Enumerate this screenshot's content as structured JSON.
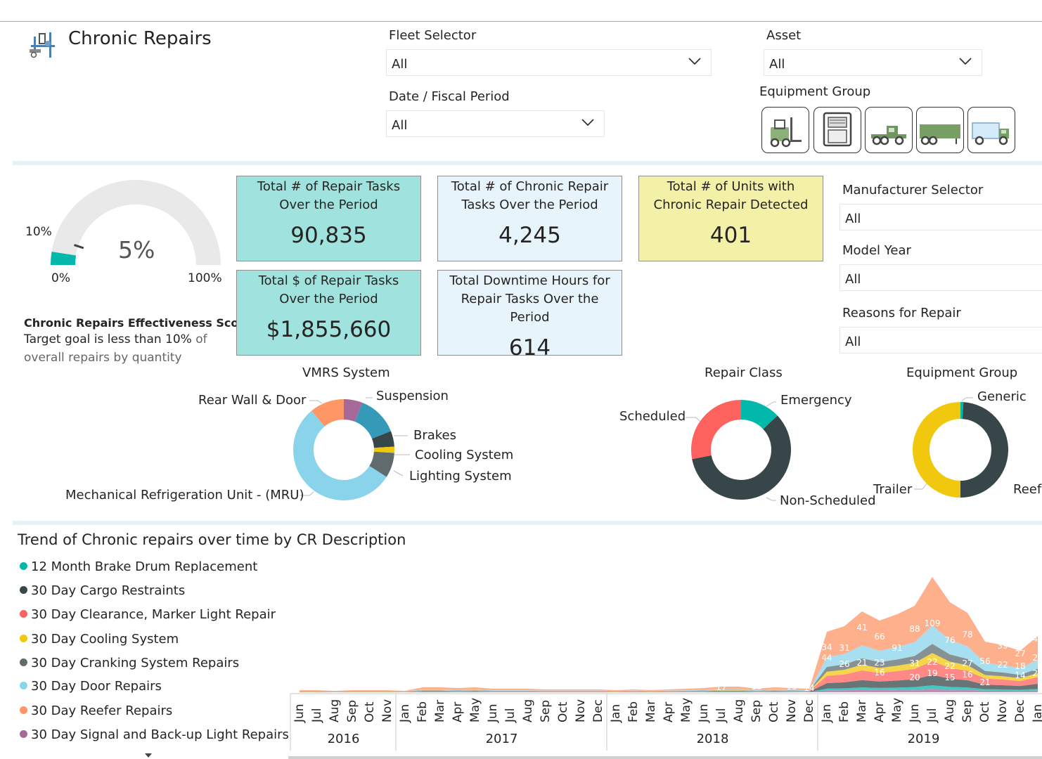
{
  "header": {
    "title": "Chronic Repairs"
  },
  "filters": {
    "fleet": {
      "label": "Fleet Selector",
      "value": "All"
    },
    "asset": {
      "label": "Asset",
      "value": "All"
    },
    "date": {
      "label": "Date / Fiscal Period",
      "value": "All"
    },
    "equipment_group": {
      "label": "Equipment Group",
      "buttons": [
        "forklift-icon",
        "reefer-unit-icon",
        "tractor-icon",
        "trailer-icon",
        "box-truck-icon"
      ]
    },
    "manufacturer": {
      "label": "Manufacturer Selector",
      "value": "All"
    },
    "model_year": {
      "label": "Model Year",
      "value": "All"
    },
    "reasons": {
      "label": "Reasons for Repair",
      "value": "All"
    }
  },
  "gauge": {
    "value_label": "5%",
    "value": 5,
    "target": 10,
    "min_label": "0%",
    "max_label": "100%",
    "target_label": "10%",
    "title": "Chronic Repairs Effectiveness Score",
    "desc_a": "Target goal is less than 10%",
    "desc_b": " of",
    "desc_c": "overall repairs by quantity"
  },
  "kpis": {
    "repair_tasks": {
      "title": "Total # of Repair Tasks Over the Period",
      "value": "90,835"
    },
    "chronic_tasks": {
      "title": "Total # of Chronic Repair Tasks Over the Period",
      "value": "4,245"
    },
    "units": {
      "title": "Total # of Units with Chronic Repair Detected",
      "value": "401"
    },
    "dollars": {
      "title": "Total $ of Repair Tasks Over the Period",
      "value": "$1,855,660"
    },
    "downtime": {
      "title": "Total Downtime Hours for Repair Tasks Over the Period",
      "value": "614"
    }
  },
  "colors": {
    "teal": "#01b8aa",
    "dark": "#374649",
    "red": "#fd625e",
    "yellow": "#f2c80f",
    "grey": "#5f6b6d",
    "lightblue": "#8ad4eb",
    "orange": "#fe9666",
    "purple": "#a66999",
    "kpi_teal": "#a0e3de",
    "kpi_light": "#e7f4fb",
    "kpi_yellow": "#f3f1a8"
  },
  "chart_data": [
    {
      "type": "pie",
      "title": "VMRS System",
      "donut": true,
      "slices": [
        {
          "label": "Suspension",
          "value": 6,
          "color": "#a66999"
        },
        {
          "label": "",
          "value": 13,
          "color": "#3599b8"
        },
        {
          "label": "Brakes",
          "value": 5,
          "color": "#374649"
        },
        {
          "label": "Cooling System",
          "value": 2,
          "color": "#f2c80f"
        },
        {
          "label": "Lighting System",
          "value": 8,
          "color": "#5f6b6d"
        },
        {
          "label": "Mechanical Refrigeration Unit - (MRU)",
          "value": 55,
          "color": "#8ad4eb"
        },
        {
          "label": "Rear Wall & Door",
          "value": 11,
          "color": "#fe9666"
        }
      ]
    },
    {
      "type": "pie",
      "title": "Repair Class",
      "donut": true,
      "slices": [
        {
          "label": "Emergency",
          "value": 13,
          "color": "#01b8aa"
        },
        {
          "label": "Non-Scheduled",
          "value": 59,
          "color": "#374649"
        },
        {
          "label": "Scheduled",
          "value": 28,
          "color": "#fd625e"
        }
      ]
    },
    {
      "type": "pie",
      "title": "Equipment Group",
      "donut": true,
      "slices": [
        {
          "label": "Generic",
          "value": 1,
          "color": "#01b8aa"
        },
        {
          "label": "Reefe",
          "value": 49,
          "color": "#374649"
        },
        {
          "label": "Trailer",
          "value": 50,
          "color": "#f2c80f"
        }
      ]
    },
    {
      "type": "area",
      "title": "Trend of Chronic repairs over time by CR Description",
      "stacked": true,
      "legend": [
        "12 Month Brake Drum Replacement",
        "30 Day Cargo Restraints",
        "30 Day Clearance, Marker Light Repair",
        "30 Day Cooling System",
        "30 Day Cranking System Repairs",
        "30 Day Door Repairs",
        "30 Day Reefer Repairs",
        "30 Day Signal and Back-up Light Repairs"
      ],
      "legend_colors": [
        "#01b8aa",
        "#374649",
        "#fd625e",
        "#f2c80f",
        "#5f6b6d",
        "#8ad4eb",
        "#fe9666",
        "#a66999"
      ],
      "months": [
        "Jun",
        "Jul",
        "Aug",
        "Sep",
        "Oct",
        "Nov",
        "Jan",
        "Feb",
        "Mar",
        "Apr",
        "May",
        "Jun",
        "Jul",
        "Aug",
        "Sep",
        "Oct",
        "Nov",
        "Dec",
        "Jan",
        "Feb",
        "Mar",
        "Apr",
        "May",
        "Jun",
        "Jul",
        "Aug",
        "Sep",
        "Oct",
        "Nov",
        "Dec",
        "Jan",
        "Feb",
        "Mar",
        "Apr",
        "May",
        "Jun",
        "Jul",
        "Aug",
        "Sep",
        "Oct",
        "Nov",
        "Dec",
        "Jan"
      ],
      "years": [
        {
          "label": "2016",
          "span": [
            0,
            6
          ]
        },
        {
          "label": "2017",
          "span": [
            6,
            18
          ]
        },
        {
          "label": "2018",
          "span": [
            18,
            30
          ]
        },
        {
          "label": "2019",
          "span": [
            30,
            42
          ]
        }
      ],
      "totals": [
        3,
        3,
        2,
        3,
        3,
        3,
        2,
        7,
        7,
        6,
        7,
        5,
        5,
        5,
        4,
        4,
        4,
        4,
        3,
        4,
        3,
        4,
        5,
        6,
        8,
        8,
        5,
        7,
        6,
        5,
        86,
        94,
        115,
        102,
        111,
        123,
        164,
        128,
        113,
        72,
        67,
        59,
        80
      ],
      "labels": [
        {
          "i": 11,
          "v": "15",
          "y": 12
        },
        {
          "i": 24,
          "v": "17",
          "y": 3
        },
        {
          "i": 26,
          "v": "18",
          "y": 4
        },
        {
          "i": 28,
          "v": "15",
          "y": 4
        },
        {
          "i": 29,
          "v": "14",
          "y": 2
        },
        {
          "i": 30,
          "v": "44",
          "y": 45
        },
        {
          "i": 30,
          "v": "34",
          "y": 60
        },
        {
          "i": 31,
          "v": "26",
          "y": 36
        },
        {
          "i": 31,
          "v": "31",
          "y": 59
        },
        {
          "i": 32,
          "v": "21",
          "y": 38
        },
        {
          "i": 32,
          "v": "41",
          "y": 88
        },
        {
          "i": 33,
          "v": "23",
          "y": 38
        },
        {
          "i": 33,
          "v": "16",
          "y": 24
        },
        {
          "i": 33,
          "v": "66",
          "y": 75
        },
        {
          "i": 34,
          "v": "91",
          "y": 59
        },
        {
          "i": 35,
          "v": "31",
          "y": 37
        },
        {
          "i": 35,
          "v": "20",
          "y": 17
        },
        {
          "i": 35,
          "v": "88",
          "y": 86
        },
        {
          "i": 36,
          "v": "22",
          "y": 39
        },
        {
          "i": 36,
          "v": "19",
          "y": 23
        },
        {
          "i": 36,
          "v": "109",
          "y": 94
        },
        {
          "i": 37,
          "v": "22",
          "y": 33
        },
        {
          "i": 37,
          "v": "15",
          "y": 17
        },
        {
          "i": 37,
          "v": "76",
          "y": 70
        },
        {
          "i": 38,
          "v": "27",
          "y": 37
        },
        {
          "i": 38,
          "v": "16",
          "y": 21
        },
        {
          "i": 38,
          "v": "78",
          "y": 78
        },
        {
          "i": 39,
          "v": "56",
          "y": 40
        },
        {
          "i": 39,
          "v": "21",
          "y": 10
        },
        {
          "i": 40,
          "v": "39",
          "y": 62
        },
        {
          "i": 40,
          "v": "22",
          "y": 35
        },
        {
          "i": 41,
          "v": "18",
          "y": 33
        },
        {
          "i": 41,
          "v": "14",
          "y": 20
        },
        {
          "i": 41,
          "v": "27",
          "y": 51
        },
        {
          "i": 42,
          "v": "44",
          "y": 72
        },
        {
          "i": 42,
          "v": "29",
          "y": 45
        },
        {
          "i": 42,
          "v": "26",
          "y": 23
        }
      ]
    }
  ]
}
